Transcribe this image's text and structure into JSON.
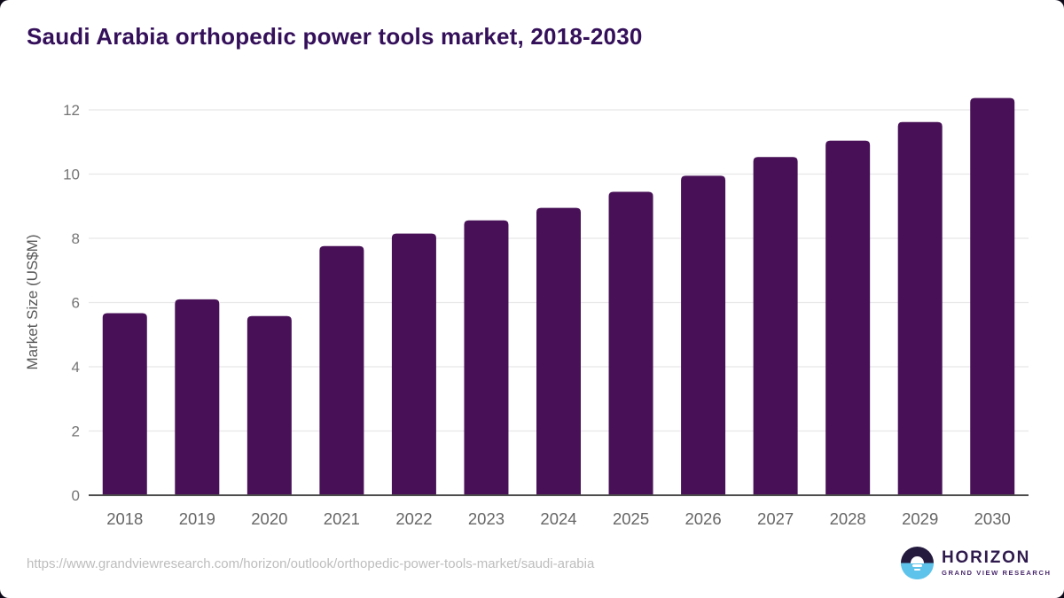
{
  "page": {
    "title": "Saudi Arabia orthopedic power tools market, 2018-2030",
    "source_url": "https://www.grandviewresearch.com/horizon/outlook/orthopedic-power-tools-market/saudi-arabia"
  },
  "logo": {
    "name": "HORIZON",
    "subtitle": "GRAND VIEW RESEARCH"
  },
  "colors": {
    "bar": "#481157",
    "title_text": "#35105a",
    "gridline": "#e8e8e8",
    "baseline": "#4d4d4d",
    "ytick_text": "#757575",
    "xtick_text": "#666666",
    "ylabel_text": "#595959",
    "card_bg": "#ffffff",
    "outer_bg": "#0e0918",
    "logo_dark": "#241a3e",
    "logo_blue": "#5ec3ea"
  },
  "chart_data": {
    "type": "bar",
    "title": "Saudi Arabia orthopedic power tools market, 2018-2030",
    "categories": [
      "2018",
      "2019",
      "2020",
      "2021",
      "2022",
      "2023",
      "2024",
      "2025",
      "2026",
      "2027",
      "2028",
      "2029",
      "2030"
    ],
    "values": [
      5.67,
      6.1,
      5.58,
      7.76,
      8.15,
      8.56,
      8.95,
      9.45,
      9.95,
      10.53,
      11.04,
      11.62,
      12.37
    ],
    "xlabel": "",
    "ylabel": "Market Size (US$M)",
    "yticks": [
      0,
      2,
      4,
      6,
      8,
      10,
      12
    ],
    "ylim": [
      0,
      12.8
    ],
    "grid": true,
    "legend_position": "none",
    "bar_color": "#481157"
  }
}
